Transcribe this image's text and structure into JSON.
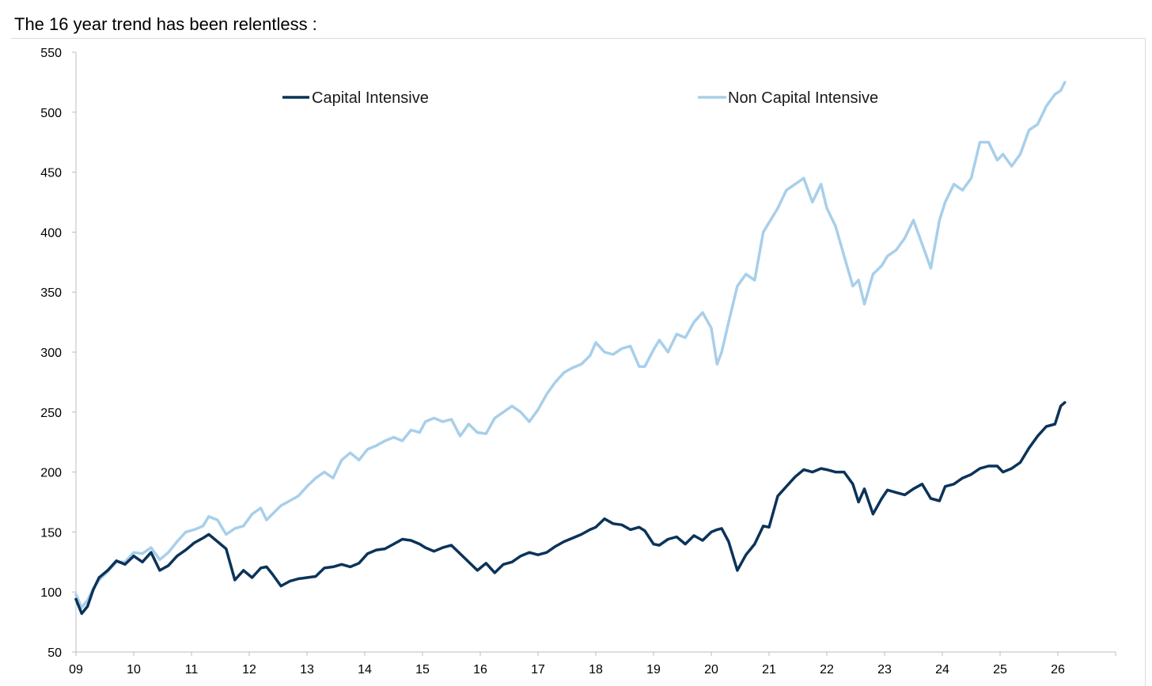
{
  "heading": "The 16 year trend has been relentless :",
  "chart_data": {
    "type": "line",
    "title": "",
    "xlabel": "",
    "ylabel": "",
    "xlim": [
      2009.0,
      2027.0
    ],
    "ylim": [
      50,
      550
    ],
    "yticks": [
      50,
      100,
      150,
      200,
      250,
      300,
      350,
      400,
      450,
      500,
      550
    ],
    "xticks": [
      {
        "label": "09",
        "x": 2009
      },
      {
        "label": "10",
        "x": 2010
      },
      {
        "label": "11",
        "x": 2011
      },
      {
        "label": "12",
        "x": 2012
      },
      {
        "label": "13",
        "x": 2013
      },
      {
        "label": "14",
        "x": 2014
      },
      {
        "label": "15",
        "x": 2015
      },
      {
        "label": "16",
        "x": 2016
      },
      {
        "label": "17",
        "x": 2017
      },
      {
        "label": "18",
        "x": 2018
      },
      {
        "label": "19",
        "x": 2019
      },
      {
        "label": "20",
        "x": 2020
      },
      {
        "label": "21",
        "x": 2021
      },
      {
        "label": "22",
        "x": 2022
      },
      {
        "label": "23",
        "x": 2023
      },
      {
        "label": "24",
        "x": 2024
      },
      {
        "label": "25",
        "x": 2025
      },
      {
        "label": "26",
        "x": 2026
      }
    ],
    "grid": false,
    "legend_position": "top",
    "series": [
      {
        "name": "Capital Intensive",
        "color": "#0b3359",
        "x": [
          2009.0,
          2009.1,
          2009.2,
          2009.3,
          2009.4,
          2009.55,
          2009.7,
          2009.85,
          2010.0,
          2010.15,
          2010.3,
          2010.45,
          2010.6,
          2010.75,
          2010.9,
          2011.05,
          2011.2,
          2011.3,
          2011.45,
          2011.6,
          2011.75,
          2011.9,
          2012.05,
          2012.2,
          2012.3,
          2012.4,
          2012.55,
          2012.7,
          2012.85,
          2013.0,
          2013.15,
          2013.3,
          2013.45,
          2013.6,
          2013.75,
          2013.9,
          2014.05,
          2014.2,
          2014.35,
          2014.5,
          2014.65,
          2014.8,
          2014.95,
          2015.05,
          2015.2,
          2015.35,
          2015.5,
          2015.65,
          2015.8,
          2015.95,
          2016.1,
          2016.25,
          2016.4,
          2016.55,
          2016.7,
          2016.85,
          2017.0,
          2017.15,
          2017.3,
          2017.45,
          2017.6,
          2017.75,
          2017.9,
          2018.0,
          2018.15,
          2018.3,
          2018.45,
          2018.6,
          2018.75,
          2018.85,
          2019.0,
          2019.1,
          2019.25,
          2019.4,
          2019.55,
          2019.7,
          2019.85,
          2020.0,
          2020.1,
          2020.18,
          2020.3,
          2020.45,
          2020.6,
          2020.75,
          2020.9,
          2021.0,
          2021.15,
          2021.3,
          2021.45,
          2021.6,
          2021.75,
          2021.9,
          2022.0,
          2022.15,
          2022.3,
          2022.45,
          2022.55,
          2022.65,
          2022.8,
          2022.95,
          2023.05,
          2023.2,
          2023.35,
          2023.5,
          2023.65,
          2023.8,
          2023.95,
          2024.05,
          2024.2,
          2024.35,
          2024.5,
          2024.65,
          2024.8,
          2024.95,
          2025.05,
          2025.2,
          2025.35,
          2025.5,
          2025.65,
          2025.8,
          2025.95,
          2026.05,
          2026.12
        ],
        "values": [
          94,
          82,
          88,
          102,
          112,
          118,
          126,
          123,
          130,
          125,
          133,
          118,
          122,
          130,
          135,
          141,
          145,
          148,
          142,
          136,
          110,
          118,
          112,
          120,
          121,
          115,
          105,
          109,
          111,
          112,
          113,
          120,
          121,
          123,
          121,
          124,
          132,
          135,
          136,
          140,
          144,
          143,
          140,
          137,
          134,
          137,
          139,
          132,
          125,
          118,
          124,
          116,
          123,
          125,
          130,
          133,
          131,
          133,
          138,
          142,
          145,
          148,
          152,
          154,
          161,
          157,
          156,
          152,
          154,
          151,
          140,
          139,
          144,
          146,
          140,
          147,
          143,
          150,
          152,
          153,
          142,
          118,
          131,
          140,
          155,
          154,
          180,
          188,
          196,
          202,
          200,
          203,
          202,
          200,
          200,
          190,
          175,
          186,
          165,
          178,
          185,
          183,
          181,
          186,
          190,
          178,
          176,
          188,
          190,
          195,
          198,
          203,
          205,
          205,
          200,
          203,
          208,
          220,
          230,
          238,
          240,
          255,
          258
        ]
      },
      {
        "name": "Non Capital Intensive",
        "color": "#a8cfea",
        "x": [
          2009.0,
          2009.1,
          2009.2,
          2009.3,
          2009.4,
          2009.55,
          2009.7,
          2009.85,
          2010.0,
          2010.15,
          2010.3,
          2010.45,
          2010.6,
          2010.75,
          2010.9,
          2011.05,
          2011.2,
          2011.3,
          2011.45,
          2011.6,
          2011.75,
          2011.9,
          2012.05,
          2012.2,
          2012.3,
          2012.4,
          2012.55,
          2012.7,
          2012.85,
          2013.0,
          2013.15,
          2013.3,
          2013.45,
          2013.6,
          2013.75,
          2013.9,
          2014.05,
          2014.2,
          2014.35,
          2014.5,
          2014.65,
          2014.8,
          2014.95,
          2015.05,
          2015.2,
          2015.35,
          2015.5,
          2015.65,
          2015.8,
          2015.95,
          2016.1,
          2016.25,
          2016.4,
          2016.55,
          2016.7,
          2016.85,
          2017.0,
          2017.15,
          2017.3,
          2017.45,
          2017.6,
          2017.75,
          2017.9,
          2018.0,
          2018.15,
          2018.3,
          2018.45,
          2018.6,
          2018.75,
          2018.85,
          2019.0,
          2019.1,
          2019.25,
          2019.4,
          2019.55,
          2019.7,
          2019.85,
          2020.0,
          2020.1,
          2020.18,
          2020.3,
          2020.45,
          2020.6,
          2020.75,
          2020.9,
          2021.0,
          2021.15,
          2021.3,
          2021.45,
          2021.6,
          2021.75,
          2021.9,
          2022.0,
          2022.15,
          2022.3,
          2022.45,
          2022.55,
          2022.65,
          2022.8,
          2022.95,
          2023.05,
          2023.2,
          2023.35,
          2023.5,
          2023.65,
          2023.8,
          2023.95,
          2024.05,
          2024.2,
          2024.35,
          2024.5,
          2024.65,
          2024.8,
          2024.95,
          2025.05,
          2025.2,
          2025.35,
          2025.5,
          2025.65,
          2025.8,
          2025.95,
          2026.05,
          2026.12
        ],
        "values": [
          98,
          87,
          93,
          103,
          110,
          117,
          125,
          125,
          133,
          132,
          137,
          127,
          133,
          142,
          150,
          152,
          155,
          163,
          160,
          148,
          153,
          155,
          165,
          170,
          160,
          165,
          172,
          176,
          180,
          188,
          195,
          200,
          195,
          210,
          216,
          210,
          219,
          222,
          226,
          229,
          226,
          235,
          233,
          242,
          245,
          242,
          244,
          230,
          240,
          233,
          232,
          245,
          250,
          255,
          250,
          242,
          252,
          265,
          275,
          283,
          287,
          290,
          297,
          308,
          300,
          298,
          303,
          305,
          288,
          288,
          302,
          310,
          300,
          315,
          312,
          325,
          333,
          320,
          290,
          300,
          325,
          355,
          365,
          360,
          400,
          408,
          420,
          435,
          440,
          445,
          425,
          440,
          420,
          405,
          380,
          355,
          360,
          340,
          365,
          372,
          380,
          385,
          395,
          410,
          390,
          370,
          410,
          425,
          440,
          435,
          445,
          475,
          475,
          460,
          465,
          455,
          465,
          485,
          490,
          505,
          515,
          518,
          525
        ]
      }
    ]
  }
}
